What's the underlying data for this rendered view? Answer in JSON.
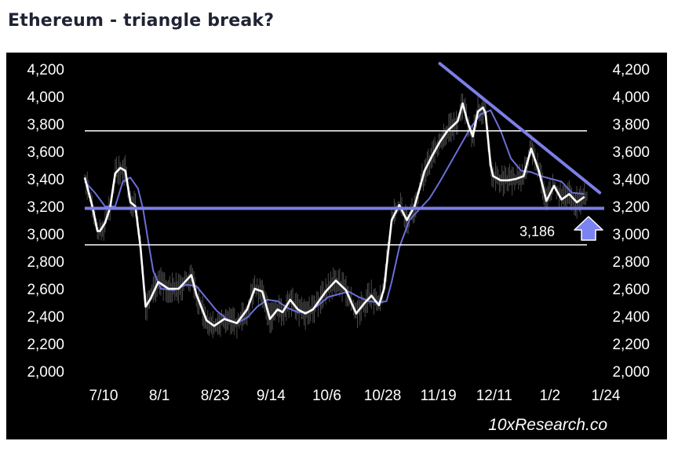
{
  "title": "Ethereum - triangle break?",
  "brand": "10xResearch.co",
  "colors": {
    "background": "#000000",
    "price": "#ffffff",
    "moving_average": "#6b6fd6",
    "support": "#7b7fe6",
    "arrow": "#7b83f0"
  },
  "chart_data": {
    "type": "line",
    "title": "Ethereum - triangle break?",
    "xlabel": "",
    "ylabel": "",
    "ylim": [
      2000,
      4200
    ],
    "yticks": [
      "4,200",
      "4,000",
      "3,800",
      "3,600",
      "3,400",
      "3,200",
      "3,000",
      "2,800",
      "2,600",
      "2,400",
      "2,200",
      "2,000"
    ],
    "ytick_values": [
      4200,
      4000,
      3800,
      3600,
      3400,
      3200,
      3000,
      2800,
      2600,
      2400,
      2200,
      2000
    ],
    "xticks": [
      "7/10",
      "8/1",
      "8/23",
      "9/14",
      "10/6",
      "10/28",
      "11/19",
      "12/11",
      "1/2",
      "1/24"
    ],
    "xtick_days": [
      0,
      22,
      44,
      66,
      88,
      110,
      132,
      154,
      176,
      198
    ],
    "series": [
      {
        "kind": "price",
        "days": [
          0,
          3,
          5,
          6,
          8,
          10,
          12,
          14,
          16,
          18,
          20,
          22,
          24,
          26,
          29,
          33,
          37,
          42,
          44,
          48,
          51,
          55,
          60,
          64,
          67,
          70,
          73,
          76,
          78,
          81,
          84,
          87,
          90,
          95,
          99,
          103,
          107,
          110,
          113,
          116,
          118,
          121,
          124,
          127,
          130,
          134,
          137,
          140,
          143,
          147,
          149,
          151,
          153,
          155,
          157,
          158,
          160,
          161,
          164,
          167,
          170,
          173,
          176,
          179,
          182,
          185,
          188,
          191,
          194,
          197
        ],
        "values": [
          3410,
          3200,
          3020,
          3020,
          3080,
          3190,
          3440,
          3480,
          3460,
          3230,
          3200,
          2900,
          2470,
          2530,
          2650,
          2600,
          2600,
          2700,
          2560,
          2370,
          2330,
          2380,
          2350,
          2450,
          2600,
          2580,
          2380,
          2450,
          2430,
          2520,
          2450,
          2420,
          2450,
          2580,
          2660,
          2590,
          2420,
          2490,
          2550,
          2480,
          2600,
          3100,
          3210,
          3100,
          3200,
          3460,
          3570,
          3670,
          3750,
          3820,
          3950,
          3810,
          3710,
          3890,
          3920,
          3880,
          3500,
          3420,
          3390,
          3390,
          3400,
          3420,
          3620,
          3460,
          3240,
          3350,
          3250,
          3290,
          3230,
          3270
        ]
      },
      {
        "kind": "moving-average",
        "days": [
          0,
          4,
          8,
          12,
          15,
          18,
          21,
          23,
          25,
          27,
          30,
          35,
          40,
          44,
          48,
          52,
          56,
          60,
          64,
          68,
          72,
          76,
          80,
          84,
          88,
          92,
          96,
          100,
          104,
          108,
          112,
          116,
          119,
          121,
          124,
          128,
          132,
          136,
          140,
          144,
          148,
          152,
          156,
          160,
          164,
          168,
          172,
          176,
          180,
          184,
          188,
          192,
          197
        ],
        "values": [
          3380,
          3300,
          3200,
          3200,
          3380,
          3410,
          3330,
          3180,
          2950,
          2730,
          2600,
          2590,
          2630,
          2620,
          2530,
          2440,
          2380,
          2350,
          2390,
          2470,
          2520,
          2510,
          2460,
          2430,
          2430,
          2480,
          2540,
          2560,
          2580,
          2540,
          2510,
          2500,
          2510,
          2650,
          2900,
          3100,
          3180,
          3260,
          3380,
          3510,
          3640,
          3770,
          3870,
          3900,
          3750,
          3550,
          3460,
          3450,
          3420,
          3400,
          3380,
          3300,
          3290
        ]
      }
    ],
    "horizontal_lines": [
      3750,
      3186,
      2920
    ],
    "trendline": {
      "from": {
        "day": 140,
        "value": 4240
      },
      "to": {
        "day": 203,
        "value": 3300
      }
    },
    "annotations": [
      {
        "text": "3,186",
        "value": 3186
      }
    ]
  }
}
